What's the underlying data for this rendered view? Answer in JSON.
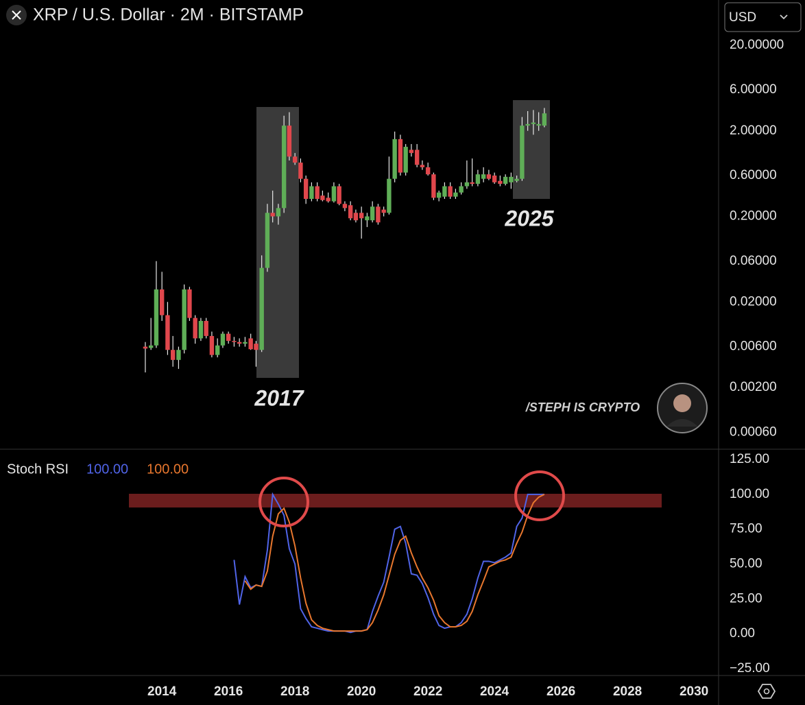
{
  "ui": {
    "currency": "USD",
    "watermark": "/STEPH IS CRYPTO"
  },
  "chart_data": [
    {
      "type": "candlestick",
      "title": "XRP / U.S. Dollar · 2M · BITSTAMP",
      "log_scale": true,
      "up_color": "#5fae57",
      "down_color": "#e0474c",
      "wick_color": "#e8e8e8",
      "annotations": [
        "2017",
        "2025"
      ],
      "xlim": [
        2009.13,
        2030.74
      ],
      "ylim": [
        0.00038,
        67.6
      ],
      "yticks": [
        {
          "value": 20,
          "label": "20.00000"
        },
        {
          "value": 6,
          "label": "6.00000"
        },
        {
          "value": 2,
          "label": "2.00000"
        },
        {
          "value": 0.6,
          "label": "0.60000"
        },
        {
          "value": 0.2,
          "label": "0.20000"
        },
        {
          "value": 0.06,
          "label": "0.06000"
        },
        {
          "value": 0.02,
          "label": "0.02000"
        },
        {
          "value": 0.006,
          "label": "0.00600"
        },
        {
          "value": 0.002,
          "label": "0.00200"
        },
        {
          "value": 0.0006,
          "label": "0.00060"
        }
      ],
      "x": [
        2013.5,
        2013.67,
        2013.83,
        2014,
        2014.17,
        2014.33,
        2014.5,
        2014.67,
        2014.83,
        2015,
        2015.17,
        2015.33,
        2015.5,
        2015.67,
        2015.83,
        2016,
        2016.17,
        2016.33,
        2016.5,
        2016.67,
        2016.83,
        2017,
        2017.17,
        2017.33,
        2017.5,
        2017.67,
        2017.83,
        2018,
        2018.17,
        2018.33,
        2018.5,
        2018.67,
        2018.83,
        2019,
        2019.17,
        2019.33,
        2019.5,
        2019.67,
        2019.83,
        2020,
        2020.17,
        2020.33,
        2020.5,
        2020.67,
        2020.83,
        2021,
        2021.17,
        2021.33,
        2021.5,
        2021.67,
        2021.83,
        2022,
        2022.17,
        2022.33,
        2022.5,
        2022.67,
        2022.83,
        2023,
        2023.17,
        2023.33,
        2023.5,
        2023.67,
        2023.83,
        2024,
        2024.17,
        2024.33,
        2024.5,
        2024.67,
        2024.83,
        2025,
        2025.17,
        2025.33,
        2025.5
      ],
      "open": [
        0.006,
        0.0058,
        0.0062,
        0.028,
        0.014,
        0.0055,
        0.0042,
        0.0055,
        0.028,
        0.013,
        0.0075,
        0.012,
        0.008,
        0.0048,
        0.0062,
        0.0085,
        0.007,
        0.0068,
        0.0065,
        0.0075,
        0.0065,
        0.0055,
        0.05,
        0.22,
        0.2,
        0.25,
        2.3,
        1.0,
        0.85,
        0.55,
        0.32,
        0.45,
        0.35,
        0.33,
        0.3,
        0.45,
        0.28,
        0.27,
        0.22,
        0.22,
        0.18,
        0.18,
        0.26,
        0.24,
        0.22,
        0.55,
        1.6,
        0.65,
        1.2,
        1.2,
        0.8,
        0.75,
        0.62,
        0.33,
        0.34,
        0.45,
        0.34,
        0.38,
        0.45,
        0.5,
        0.48,
        0.55,
        0.62,
        0.6,
        0.52,
        0.48,
        0.5,
        0.52,
        0.55,
        2.3,
        2.4,
        2.3,
        2.3
      ],
      "high": [
        0.0068,
        0.013,
        0.06,
        0.045,
        0.02,
        0.008,
        0.006,
        0.032,
        0.03,
        0.014,
        0.013,
        0.013,
        0.009,
        0.0075,
        0.009,
        0.009,
        0.0078,
        0.0075,
        0.0078,
        0.0085,
        0.007,
        0.07,
        0.28,
        0.4,
        0.28,
        3.0,
        3.3,
        1.1,
        0.95,
        0.6,
        0.5,
        0.5,
        0.4,
        0.38,
        0.5,
        0.48,
        0.3,
        0.3,
        0.24,
        0.26,
        0.22,
        0.3,
        0.28,
        0.26,
        1.0,
        1.96,
        1.8,
        1.4,
        1.4,
        1.4,
        0.9,
        0.85,
        0.65,
        0.4,
        0.5,
        0.5,
        0.42,
        0.5,
        0.9,
        0.95,
        0.7,
        0.75,
        0.7,
        0.65,
        0.6,
        0.62,
        0.65,
        0.6,
        2.9,
        3.4,
        3.5,
        3.3,
        3.7
      ],
      "low": [
        0.003,
        0.0055,
        0.0058,
        0.012,
        0.0048,
        0.0035,
        0.0033,
        0.005,
        0.012,
        0.0065,
        0.007,
        0.0075,
        0.0045,
        0.0045,
        0.0058,
        0.0065,
        0.006,
        0.006,
        0.006,
        0.0055,
        0.0035,
        0.0052,
        0.045,
        0.17,
        0.16,
        0.22,
        0.9,
        0.8,
        0.5,
        0.28,
        0.3,
        0.3,
        0.3,
        0.29,
        0.29,
        0.27,
        0.23,
        0.18,
        0.17,
        0.11,
        0.15,
        0.17,
        0.16,
        0.2,
        0.21,
        0.5,
        0.6,
        0.6,
        1.0,
        0.75,
        0.7,
        0.6,
        0.31,
        0.3,
        0.32,
        0.32,
        0.32,
        0.36,
        0.42,
        0.45,
        0.45,
        0.5,
        0.53,
        0.48,
        0.45,
        0.46,
        0.42,
        0.5,
        0.52,
        2.0,
        1.8,
        2.0,
        2.2
      ],
      "close": [
        0.0057,
        0.0062,
        0.028,
        0.014,
        0.0055,
        0.0042,
        0.0055,
        0.028,
        0.013,
        0.0075,
        0.012,
        0.008,
        0.0048,
        0.0062,
        0.0085,
        0.007,
        0.0068,
        0.0065,
        0.0068,
        0.0056,
        0.0055,
        0.05,
        0.22,
        0.2,
        0.25,
        2.3,
        1.0,
        0.85,
        0.55,
        0.32,
        0.45,
        0.32,
        0.31,
        0.3,
        0.45,
        0.28,
        0.25,
        0.19,
        0.18,
        0.19,
        0.2,
        0.26,
        0.17,
        0.22,
        0.55,
        1.6,
        0.65,
        1.3,
        1.1,
        0.8,
        0.75,
        0.62,
        0.33,
        0.38,
        0.45,
        0.34,
        0.38,
        0.45,
        0.5,
        0.48,
        0.62,
        0.62,
        0.55,
        0.5,
        0.48,
        0.58,
        0.58,
        0.55,
        2.3,
        2.4,
        2.5,
        2.4,
        3.2
      ]
    },
    {
      "type": "line",
      "title": "Stoch RSI",
      "xlim": [
        2009.13,
        2030.74
      ],
      "ylim": [
        -29.9,
        131.4
      ],
      "xticks": [
        2014,
        2016,
        2018,
        2020,
        2022,
        2024,
        2026,
        2028,
        2030
      ],
      "yticks": [
        {
          "value": 125,
          "label": "125.00"
        },
        {
          "value": 100,
          "label": "100.00"
        },
        {
          "value": 75,
          "label": "75.00"
        },
        {
          "value": 50,
          "label": "50.00"
        },
        {
          "value": 25,
          "label": "25.00"
        },
        {
          "value": 0,
          "label": "0.00"
        },
        {
          "value": -25,
          "label": "−25.00"
        }
      ],
      "x": [
        2016.17,
        2016.33,
        2016.5,
        2016.67,
        2016.83,
        2017,
        2017.17,
        2017.33,
        2017.5,
        2017.67,
        2017.83,
        2018,
        2018.17,
        2018.33,
        2018.5,
        2018.67,
        2018.83,
        2019,
        2019.17,
        2019.33,
        2019.5,
        2019.67,
        2019.83,
        2020,
        2020.17,
        2020.33,
        2020.5,
        2020.67,
        2020.83,
        2021,
        2021.17,
        2021.33,
        2021.5,
        2021.67,
        2021.83,
        2022,
        2022.17,
        2022.33,
        2022.5,
        2022.67,
        2022.83,
        2023,
        2023.17,
        2023.33,
        2023.5,
        2023.67,
        2023.83,
        2024,
        2024.17,
        2024.33,
        2024.5,
        2024.67,
        2024.83,
        2025,
        2025.17,
        2025.33,
        2025.5
      ],
      "series": [
        {
          "color": "#5064e8",
          "value_label": "100.00",
          "values": [
            53,
            21,
            41,
            33,
            35,
            34,
            60,
            100,
            93,
            85,
            61,
            50,
            18,
            11,
            5,
            4,
            3,
            2,
            2,
            2,
            2,
            1,
            2,
            2,
            3,
            16,
            27,
            37,
            55,
            75,
            77,
            65,
            43,
            42,
            36,
            26,
            14,
            6,
            4,
            5,
            5,
            8,
            14,
            25,
            40,
            52,
            52,
            51,
            53,
            55,
            58,
            77,
            83,
            100,
            100,
            100,
            100
          ]
        },
        {
          "color": "#e8772e",
          "value_label": "100.00",
          "values": [
            null,
            null,
            38,
            32,
            35,
            34,
            45,
            70,
            86,
            90,
            80,
            63,
            40,
            22,
            10,
            6,
            4,
            3,
            2,
            2,
            2,
            2,
            2,
            2,
            3,
            8,
            17,
            28,
            42,
            57,
            67,
            70,
            58,
            48,
            40,
            33,
            24,
            13,
            8,
            5,
            5,
            6,
            9,
            16,
            28,
            38,
            48,
            50,
            52,
            53,
            55,
            65,
            73,
            85,
            94,
            98,
            100
          ]
        }
      ]
    }
  ]
}
